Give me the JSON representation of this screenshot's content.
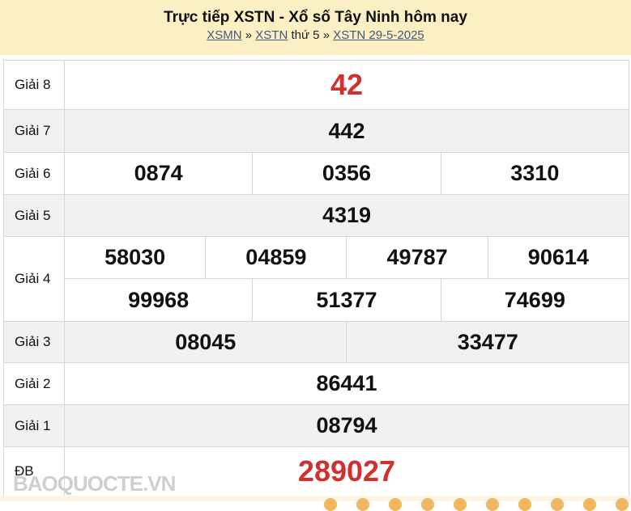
{
  "header": {
    "title": "Trực tiếp XSTN - Xổ số Tây Ninh hôm nay",
    "link1": "XSMN",
    "sep1": "»",
    "link2": "XSTN",
    "text": "thứ 5",
    "sep2": "»",
    "link3": "XSTN 29-5-2025"
  },
  "prizes": [
    {
      "label": "Giải 8",
      "numbers": [
        "42"
      ]
    },
    {
      "label": "Giải 7",
      "numbers": [
        "442"
      ]
    },
    {
      "label": "Giải 6",
      "numbers": [
        "0874",
        "0356",
        "3310"
      ]
    },
    {
      "label": "Giải 5",
      "numbers": [
        "4319"
      ]
    },
    {
      "label": "Giải 4",
      "numbers": [
        "58030",
        "04859",
        "49787",
        "90614",
        "99968",
        "51377",
        "74699"
      ]
    },
    {
      "label": "Giải 3",
      "numbers": [
        "08045",
        "33477"
      ]
    },
    {
      "label": "Giải 2",
      "numbers": [
        "86441"
      ]
    },
    {
      "label": "Giải 1",
      "numbers": [
        "08794"
      ]
    },
    {
      "label": "ĐB",
      "numbers": [
        "289027"
      ]
    }
  ],
  "watermark": "BAOQUOCTE.VN",
  "colors": {
    "header_bg": "#fcefc3",
    "highlight": "#d0312d"
  }
}
